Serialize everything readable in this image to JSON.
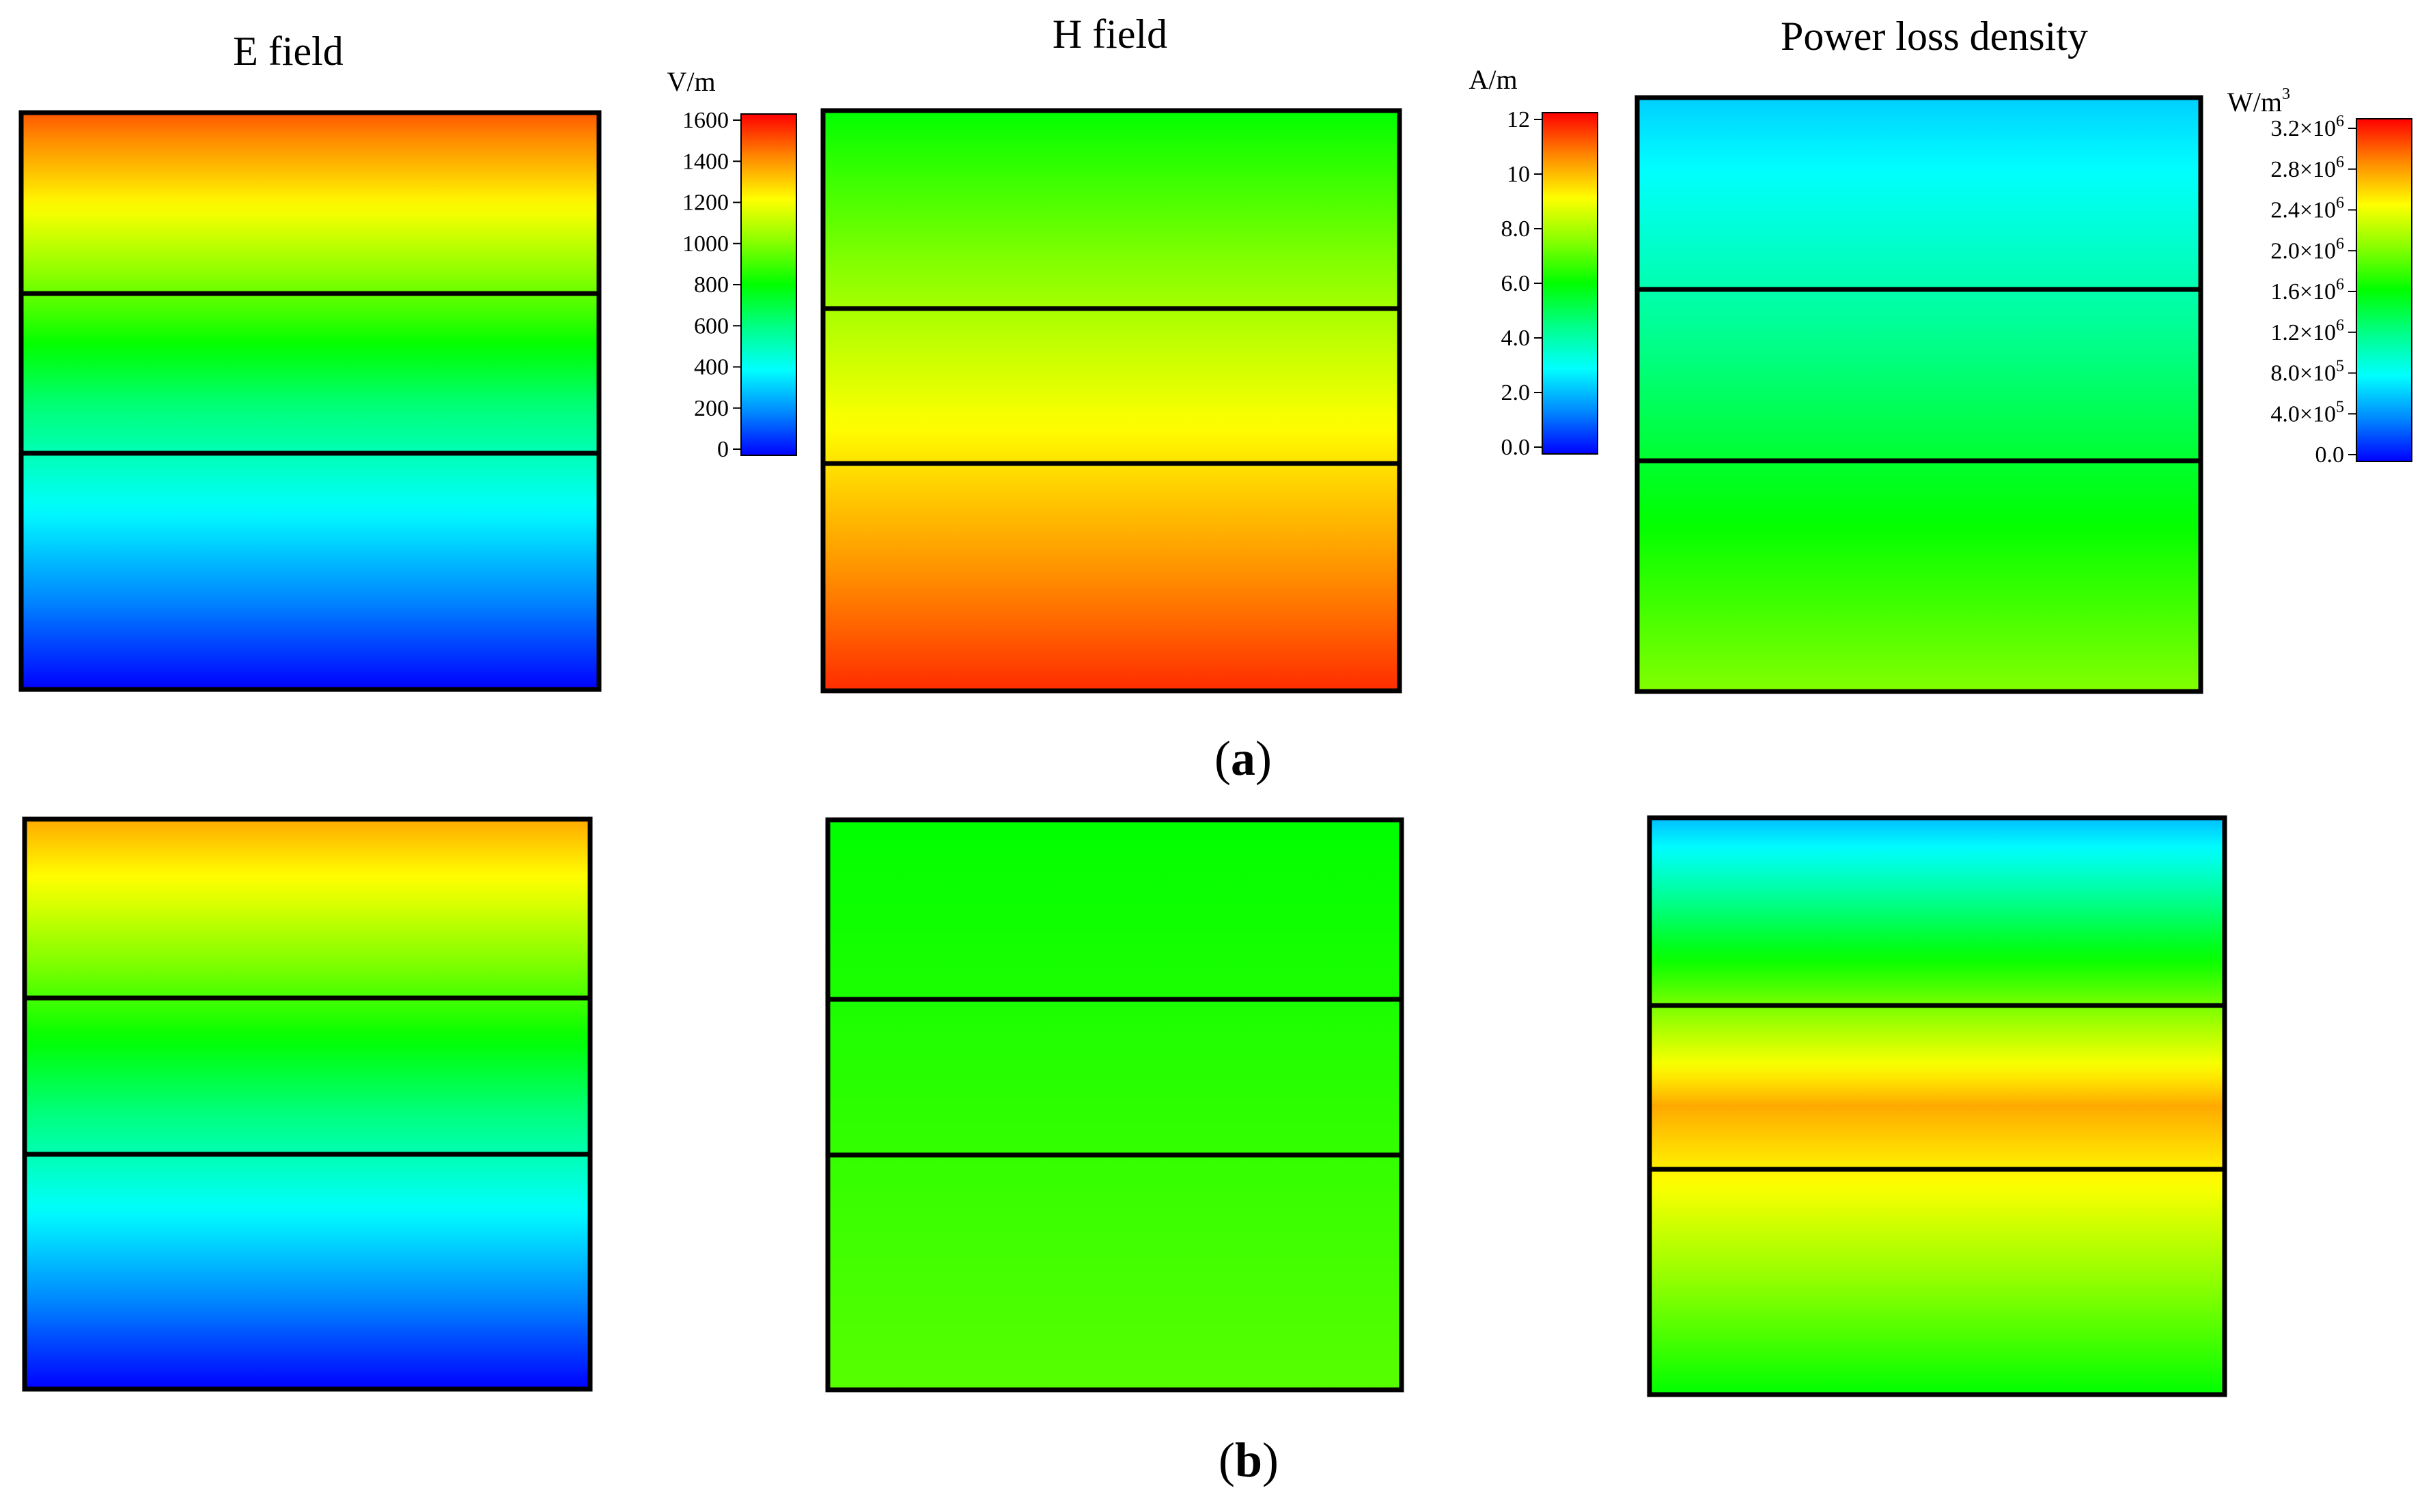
{
  "titles": {
    "e_field": "E field",
    "h_field": "H field",
    "power": "Power loss density"
  },
  "captions": {
    "a": "a",
    "b": "b"
  },
  "colorbars": {
    "e": {
      "unit": "V/m",
      "ticks": [
        "1600",
        "1400",
        "1200",
        "1000",
        "800",
        "600",
        "400",
        "200",
        "0"
      ]
    },
    "h": {
      "unit": "A/m",
      "ticks": [
        "12",
        "10",
        "8.0",
        "6.0",
        "4.0",
        "2.0",
        "0.0"
      ]
    },
    "p": {
      "unit_base": "W/m",
      "unit_sup": "3",
      "ticks": [
        {
          "mant": "3.2×10",
          "exp": "6"
        },
        {
          "mant": "2.8×10",
          "exp": "6"
        },
        {
          "mant": "2.4×10",
          "exp": "6"
        },
        {
          "mant": "2.0×10",
          "exp": "6"
        },
        {
          "mant": "1.6×10",
          "exp": "6"
        },
        {
          "mant": "1.2×10",
          "exp": "6"
        },
        {
          "mant": "8.0×10",
          "exp": "5"
        },
        {
          "mant": "4.0×10",
          "exp": "5"
        },
        {
          "mant": "0.0",
          "exp": ""
        }
      ]
    }
  },
  "colors": {
    "jet": [
      "#0000ff",
      "#0088ff",
      "#00ffff",
      "#00ff88",
      "#00ff00",
      "#88ff00",
      "#ffff00",
      "#ff8800",
      "#ff0000"
    ],
    "frame": "#000000"
  },
  "panels": {
    "a_e": {
      "colormap": "jet",
      "fraction_top_to_bottom": [
        0.92,
        0.4,
        0.0
      ]
    },
    "a_h": {
      "colormap": "jet",
      "fraction_top_to_bottom": [
        0.5,
        0.96
      ]
    },
    "a_p": {
      "colormap": "jet",
      "fraction_top_to_bottom": [
        0.2,
        0.62
      ]
    },
    "b_e": {
      "colormap": "jet",
      "fraction_top_to_bottom": [
        0.84,
        0.4,
        0.0
      ]
    },
    "b_h": {
      "colormap": "jet",
      "fraction_top_to_bottom": [
        0.5,
        0.58
      ]
    },
    "b_p": {
      "colormap": "jet",
      "fraction_top_to_bottom": [
        0.18,
        0.84,
        0.5
      ]
    }
  }
}
